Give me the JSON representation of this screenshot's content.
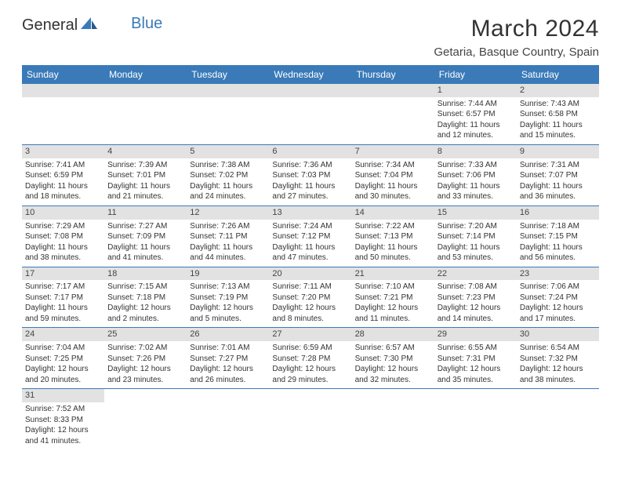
{
  "logo": {
    "text1": "General",
    "text2": "Blue"
  },
  "title": "March 2024",
  "location": "Getaria, Basque Country, Spain",
  "weekdays": [
    "Sunday",
    "Monday",
    "Tuesday",
    "Wednesday",
    "Thursday",
    "Friday",
    "Saturday"
  ],
  "colors": {
    "header_bg": "#3a7ab8",
    "header_fg": "#ffffff",
    "daynum_bg": "#e2e2e2",
    "rule": "#3a7ab8"
  },
  "startOffset": 5,
  "days": [
    {
      "n": 1,
      "sunrise": "7:44 AM",
      "sunset": "6:57 PM",
      "daylight": "11 hours and 12 minutes."
    },
    {
      "n": 2,
      "sunrise": "7:43 AM",
      "sunset": "6:58 PM",
      "daylight": "11 hours and 15 minutes."
    },
    {
      "n": 3,
      "sunrise": "7:41 AM",
      "sunset": "6:59 PM",
      "daylight": "11 hours and 18 minutes."
    },
    {
      "n": 4,
      "sunrise": "7:39 AM",
      "sunset": "7:01 PM",
      "daylight": "11 hours and 21 minutes."
    },
    {
      "n": 5,
      "sunrise": "7:38 AM",
      "sunset": "7:02 PM",
      "daylight": "11 hours and 24 minutes."
    },
    {
      "n": 6,
      "sunrise": "7:36 AM",
      "sunset": "7:03 PM",
      "daylight": "11 hours and 27 minutes."
    },
    {
      "n": 7,
      "sunrise": "7:34 AM",
      "sunset": "7:04 PM",
      "daylight": "11 hours and 30 minutes."
    },
    {
      "n": 8,
      "sunrise": "7:33 AM",
      "sunset": "7:06 PM",
      "daylight": "11 hours and 33 minutes."
    },
    {
      "n": 9,
      "sunrise": "7:31 AM",
      "sunset": "7:07 PM",
      "daylight": "11 hours and 36 minutes."
    },
    {
      "n": 10,
      "sunrise": "7:29 AM",
      "sunset": "7:08 PM",
      "daylight": "11 hours and 38 minutes."
    },
    {
      "n": 11,
      "sunrise": "7:27 AM",
      "sunset": "7:09 PM",
      "daylight": "11 hours and 41 minutes."
    },
    {
      "n": 12,
      "sunrise": "7:26 AM",
      "sunset": "7:11 PM",
      "daylight": "11 hours and 44 minutes."
    },
    {
      "n": 13,
      "sunrise": "7:24 AM",
      "sunset": "7:12 PM",
      "daylight": "11 hours and 47 minutes."
    },
    {
      "n": 14,
      "sunrise": "7:22 AM",
      "sunset": "7:13 PM",
      "daylight": "11 hours and 50 minutes."
    },
    {
      "n": 15,
      "sunrise": "7:20 AM",
      "sunset": "7:14 PM",
      "daylight": "11 hours and 53 minutes."
    },
    {
      "n": 16,
      "sunrise": "7:18 AM",
      "sunset": "7:15 PM",
      "daylight": "11 hours and 56 minutes."
    },
    {
      "n": 17,
      "sunrise": "7:17 AM",
      "sunset": "7:17 PM",
      "daylight": "11 hours and 59 minutes."
    },
    {
      "n": 18,
      "sunrise": "7:15 AM",
      "sunset": "7:18 PM",
      "daylight": "12 hours and 2 minutes."
    },
    {
      "n": 19,
      "sunrise": "7:13 AM",
      "sunset": "7:19 PM",
      "daylight": "12 hours and 5 minutes."
    },
    {
      "n": 20,
      "sunrise": "7:11 AM",
      "sunset": "7:20 PM",
      "daylight": "12 hours and 8 minutes."
    },
    {
      "n": 21,
      "sunrise": "7:10 AM",
      "sunset": "7:21 PM",
      "daylight": "12 hours and 11 minutes."
    },
    {
      "n": 22,
      "sunrise": "7:08 AM",
      "sunset": "7:23 PM",
      "daylight": "12 hours and 14 minutes."
    },
    {
      "n": 23,
      "sunrise": "7:06 AM",
      "sunset": "7:24 PM",
      "daylight": "12 hours and 17 minutes."
    },
    {
      "n": 24,
      "sunrise": "7:04 AM",
      "sunset": "7:25 PM",
      "daylight": "12 hours and 20 minutes."
    },
    {
      "n": 25,
      "sunrise": "7:02 AM",
      "sunset": "7:26 PM",
      "daylight": "12 hours and 23 minutes."
    },
    {
      "n": 26,
      "sunrise": "7:01 AM",
      "sunset": "7:27 PM",
      "daylight": "12 hours and 26 minutes."
    },
    {
      "n": 27,
      "sunrise": "6:59 AM",
      "sunset": "7:28 PM",
      "daylight": "12 hours and 29 minutes."
    },
    {
      "n": 28,
      "sunrise": "6:57 AM",
      "sunset": "7:30 PM",
      "daylight": "12 hours and 32 minutes."
    },
    {
      "n": 29,
      "sunrise": "6:55 AM",
      "sunset": "7:31 PM",
      "daylight": "12 hours and 35 minutes."
    },
    {
      "n": 30,
      "sunrise": "6:54 AM",
      "sunset": "7:32 PM",
      "daylight": "12 hours and 38 minutes."
    },
    {
      "n": 31,
      "sunrise": "7:52 AM",
      "sunset": "8:33 PM",
      "daylight": "12 hours and 41 minutes."
    }
  ],
  "labels": {
    "sunrise": "Sunrise:",
    "sunset": "Sunset:",
    "daylight": "Daylight:"
  }
}
